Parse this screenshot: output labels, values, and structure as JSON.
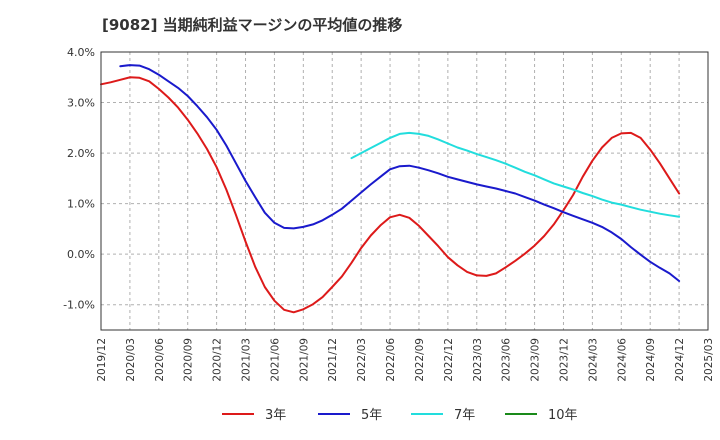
{
  "chart_data": {
    "type": "line",
    "title": "[9082]  当期純利益マージンの平均値の推移",
    "xlabel": "",
    "ylabel": "",
    "ylim": [
      -1.5,
      4.0
    ],
    "y_ticks": [
      -1.0,
      0.0,
      1.0,
      2.0,
      3.0,
      4.0
    ],
    "y_tick_labels": [
      "-1.0%",
      "0.0%",
      "1.0%",
      "2.0%",
      "3.0%",
      "4.0%"
    ],
    "x_tick_labels": [
      "2019/12",
      "2020/03",
      "2020/06",
      "2020/09",
      "2020/12",
      "2021/03",
      "2021/06",
      "2021/09",
      "2021/12",
      "2022/03",
      "2022/06",
      "2022/09",
      "2022/12",
      "2023/03",
      "2023/06",
      "2023/09",
      "2023/12",
      "2024/03",
      "2024/06",
      "2024/09",
      "2024/12",
      "2025/03"
    ],
    "grid": true,
    "legend_position": "bottom",
    "series": [
      {
        "name": "3年",
        "color": "#dd1a1a",
        "points": [
          [
            "2019/12",
            3.36
          ],
          [
            "2020/01",
            3.4
          ],
          [
            "2020/02",
            3.45
          ],
          [
            "2020/03",
            3.5
          ],
          [
            "2020/04",
            3.49
          ],
          [
            "2020/05",
            3.42
          ],
          [
            "2020/06",
            3.27
          ],
          [
            "2020/07",
            3.1
          ],
          [
            "2020/08",
            2.9
          ],
          [
            "2020/09",
            2.66
          ],
          [
            "2020/10",
            2.39
          ],
          [
            "2020/11",
            2.08
          ],
          [
            "2020/12",
            1.72
          ],
          [
            "2021/01",
            1.28
          ],
          [
            "2021/02",
            0.78
          ],
          [
            "2021/03",
            0.25
          ],
          [
            "2021/04",
            -0.25
          ],
          [
            "2021/05",
            -0.65
          ],
          [
            "2021/06",
            -0.92
          ],
          [
            "2021/07",
            -1.1
          ],
          [
            "2021/08",
            -1.15
          ],
          [
            "2021/09",
            -1.09
          ],
          [
            "2021/10",
            -0.99
          ],
          [
            "2021/11",
            -0.85
          ],
          [
            "2021/12",
            -0.65
          ],
          [
            "2022/01",
            -0.44
          ],
          [
            "2022/02",
            -0.17
          ],
          [
            "2022/03",
            0.12
          ],
          [
            "2022/04",
            0.37
          ],
          [
            "2022/05",
            0.57
          ],
          [
            "2022/06",
            0.73
          ],
          [
            "2022/07",
            0.78
          ],
          [
            "2022/08",
            0.72
          ],
          [
            "2022/09",
            0.56
          ],
          [
            "2022/10",
            0.36
          ],
          [
            "2022/11",
            0.16
          ],
          [
            "2022/12",
            -0.06
          ],
          [
            "2023/01",
            -0.22
          ],
          [
            "2023/02",
            -0.35
          ],
          [
            "2023/03",
            -0.42
          ],
          [
            "2023/04",
            -0.43
          ],
          [
            "2023/05",
            -0.38
          ],
          [
            "2023/06",
            -0.26
          ],
          [
            "2023/07",
            -0.13
          ],
          [
            "2023/08",
            0.01
          ],
          [
            "2023/09",
            0.17
          ],
          [
            "2023/10",
            0.36
          ],
          [
            "2023/11",
            0.59
          ],
          [
            "2023/12",
            0.87
          ],
          [
            "2024/01",
            1.17
          ],
          [
            "2024/02",
            1.53
          ],
          [
            "2024/03",
            1.85
          ],
          [
            "2024/04",
            2.11
          ],
          [
            "2024/05",
            2.3
          ],
          [
            "2024/06",
            2.39
          ],
          [
            "2024/07",
            2.4
          ],
          [
            "2024/08",
            2.3
          ],
          [
            "2024/09",
            2.07
          ],
          [
            "2024/10",
            1.8
          ],
          [
            "2024/11",
            1.5
          ],
          [
            "2024/12",
            1.2
          ]
        ]
      },
      {
        "name": "5年",
        "color": "#1a1acc",
        "points": [
          [
            "2020/02",
            3.72
          ],
          [
            "2020/03",
            3.74
          ],
          [
            "2020/04",
            3.73
          ],
          [
            "2020/05",
            3.66
          ],
          [
            "2020/06",
            3.55
          ],
          [
            "2020/07",
            3.42
          ],
          [
            "2020/08",
            3.29
          ],
          [
            "2020/09",
            3.13
          ],
          [
            "2020/10",
            2.93
          ],
          [
            "2020/11",
            2.71
          ],
          [
            "2020/12",
            2.46
          ],
          [
            "2021/01",
            2.15
          ],
          [
            "2021/02",
            1.8
          ],
          [
            "2021/03",
            1.45
          ],
          [
            "2021/04",
            1.13
          ],
          [
            "2021/05",
            0.82
          ],
          [
            "2021/06",
            0.62
          ],
          [
            "2021/07",
            0.52
          ],
          [
            "2021/08",
            0.51
          ],
          [
            "2021/09",
            0.54
          ],
          [
            "2021/10",
            0.59
          ],
          [
            "2021/11",
            0.67
          ],
          [
            "2021/12",
            0.78
          ],
          [
            "2022/01",
            0.9
          ],
          [
            "2022/02",
            1.06
          ],
          [
            "2022/03",
            1.22
          ],
          [
            "2022/04",
            1.38
          ],
          [
            "2022/05",
            1.53
          ],
          [
            "2022/06",
            1.68
          ],
          [
            "2022/07",
            1.74
          ],
          [
            "2022/08",
            1.75
          ],
          [
            "2022/09",
            1.71
          ],
          [
            "2022/10",
            1.66
          ],
          [
            "2022/11",
            1.6
          ],
          [
            "2022/12",
            1.53
          ],
          [
            "2023/01",
            1.48
          ],
          [
            "2023/02",
            1.43
          ],
          [
            "2023/03",
            1.38
          ],
          [
            "2023/04",
            1.34
          ],
          [
            "2023/05",
            1.3
          ],
          [
            "2023/06",
            1.25
          ],
          [
            "2023/07",
            1.2
          ],
          [
            "2023/08",
            1.13
          ],
          [
            "2023/09",
            1.06
          ],
          [
            "2023/10",
            0.98
          ],
          [
            "2023/11",
            0.91
          ],
          [
            "2023/12",
            0.83
          ],
          [
            "2024/01",
            0.76
          ],
          [
            "2024/02",
            0.69
          ],
          [
            "2024/03",
            0.62
          ],
          [
            "2024/04",
            0.54
          ],
          [
            "2024/05",
            0.43
          ],
          [
            "2024/06",
            0.3
          ],
          [
            "2024/07",
            0.14
          ],
          [
            "2024/08",
            -0.01
          ],
          [
            "2024/09",
            -0.15
          ],
          [
            "2024/10",
            -0.27
          ],
          [
            "2024/11",
            -0.38
          ],
          [
            "2024/12",
            -0.53
          ]
        ]
      },
      {
        "name": "7年",
        "color": "#22dddd",
        "points": [
          [
            "2022/02",
            1.9
          ],
          [
            "2022/03",
            2.0
          ],
          [
            "2022/04",
            2.1
          ],
          [
            "2022/05",
            2.2
          ],
          [
            "2022/06",
            2.3
          ],
          [
            "2022/07",
            2.38
          ],
          [
            "2022/08",
            2.4
          ],
          [
            "2022/09",
            2.38
          ],
          [
            "2022/10",
            2.34
          ],
          [
            "2022/11",
            2.27
          ],
          [
            "2022/12",
            2.19
          ],
          [
            "2023/01",
            2.11
          ],
          [
            "2023/02",
            2.05
          ],
          [
            "2023/03",
            1.98
          ],
          [
            "2023/04",
            1.92
          ],
          [
            "2023/05",
            1.86
          ],
          [
            "2023/06",
            1.79
          ],
          [
            "2023/07",
            1.71
          ],
          [
            "2023/08",
            1.63
          ],
          [
            "2023/09",
            1.56
          ],
          [
            "2023/10",
            1.48
          ],
          [
            "2023/11",
            1.4
          ],
          [
            "2023/12",
            1.34
          ],
          [
            "2024/01",
            1.28
          ],
          [
            "2024/02",
            1.21
          ],
          [
            "2024/03",
            1.15
          ],
          [
            "2024/04",
            1.08
          ],
          [
            "2024/05",
            1.02
          ],
          [
            "2024/06",
            0.98
          ],
          [
            "2024/07",
            0.93
          ],
          [
            "2024/08",
            0.88
          ],
          [
            "2024/09",
            0.84
          ],
          [
            "2024/10",
            0.8
          ],
          [
            "2024/11",
            0.77
          ],
          [
            "2024/12",
            0.74
          ]
        ]
      },
      {
        "name": "10年",
        "color": "#1a8a1a",
        "points": []
      }
    ]
  }
}
